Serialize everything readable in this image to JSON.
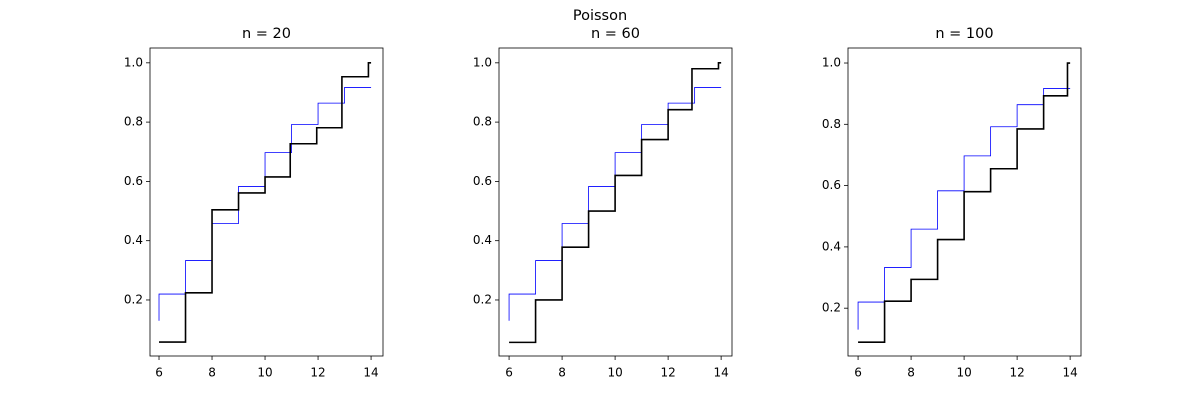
{
  "title": "Poisson",
  "chart_data": [
    {
      "type": "line",
      "title": "n = 20",
      "xlim": [
        5.66,
        14.45
      ],
      "ylim": [
        0.011,
        1.05
      ],
      "xticks": [
        6,
        8,
        10,
        12,
        14
      ],
      "yticks": [
        0.2,
        0.4,
        0.6,
        0.8,
        {
          "value": 1.0,
          "label": "1.0"
        }
      ],
      "series": [
        {
          "color": "#0000ff",
          "linewidth": 0.8,
          "drawstyle": "steps-pre",
          "x": [
            6,
            7,
            8,
            9,
            10,
            11,
            12,
            13,
            14
          ],
          "values": [
            0.13,
            0.22,
            0.333,
            0.458,
            0.583,
            0.697,
            0.792,
            0.864,
            0.917
          ]
        },
        {
          "color": "#000000",
          "linewidth": 1.6,
          "drawstyle": "steps-post",
          "x": [
            6,
            7,
            8,
            9,
            10,
            10.95,
            11.95,
            12.9,
            13.9,
            14
          ],
          "values": [
            0.058,
            0.224,
            0.504,
            0.561,
            0.615,
            0.727,
            0.781,
            0.953,
            1.0,
            1.0
          ]
        }
      ]
    },
    {
      "type": "line",
      "title": "n = 60",
      "xlim": [
        5.62,
        14.41
      ],
      "ylim": [
        0.011,
        1.05
      ],
      "xticks": [
        6,
        8,
        10,
        12,
        14
      ],
      "yticks": [
        0.2,
        0.4,
        0.6,
        0.8,
        {
          "value": 1.0,
          "label": "1.0"
        }
      ],
      "series": [
        {
          "color": "#0000ff",
          "linewidth": 0.8,
          "drawstyle": "steps-pre",
          "x": [
            6,
            7,
            8,
            9,
            10,
            11,
            12,
            13,
            14
          ],
          "values": [
            0.13,
            0.22,
            0.333,
            0.458,
            0.583,
            0.697,
            0.792,
            0.864,
            0.917
          ]
        },
        {
          "color": "#000000",
          "linewidth": 1.6,
          "drawstyle": "steps-post",
          "x": [
            6,
            7,
            8,
            9,
            10,
            11,
            12,
            12.9,
            13.9,
            14
          ],
          "values": [
            0.057,
            0.2,
            0.378,
            0.5,
            0.62,
            0.741,
            0.842,
            0.98,
            1.0,
            1.0
          ]
        }
      ]
    },
    {
      "type": "line",
      "title": "n = 100",
      "xlim": [
        5.62,
        14.41
      ],
      "ylim": [
        0.044,
        1.049
      ],
      "xticks": [
        6,
        8,
        10,
        12,
        14
      ],
      "yticks": [
        0.2,
        0.4,
        0.6,
        0.8,
        {
          "value": 1.0,
          "label": "1.0"
        }
      ],
      "series": [
        {
          "color": "#0000ff",
          "linewidth": 0.8,
          "drawstyle": "steps-pre",
          "x": [
            6,
            7,
            8,
            9,
            10,
            11,
            12,
            13,
            14
          ],
          "values": [
            0.13,
            0.22,
            0.333,
            0.458,
            0.583,
            0.697,
            0.792,
            0.864,
            0.917
          ]
        },
        {
          "color": "#000000",
          "linewidth": 1.6,
          "drawstyle": "steps-post",
          "x": [
            6,
            7,
            8,
            9,
            10,
            11,
            12,
            13,
            13.9,
            14
          ],
          "values": [
            0.089,
            0.223,
            0.294,
            0.424,
            0.58,
            0.655,
            0.785,
            0.893,
            1.0,
            1.0
          ]
        }
      ]
    }
  ]
}
